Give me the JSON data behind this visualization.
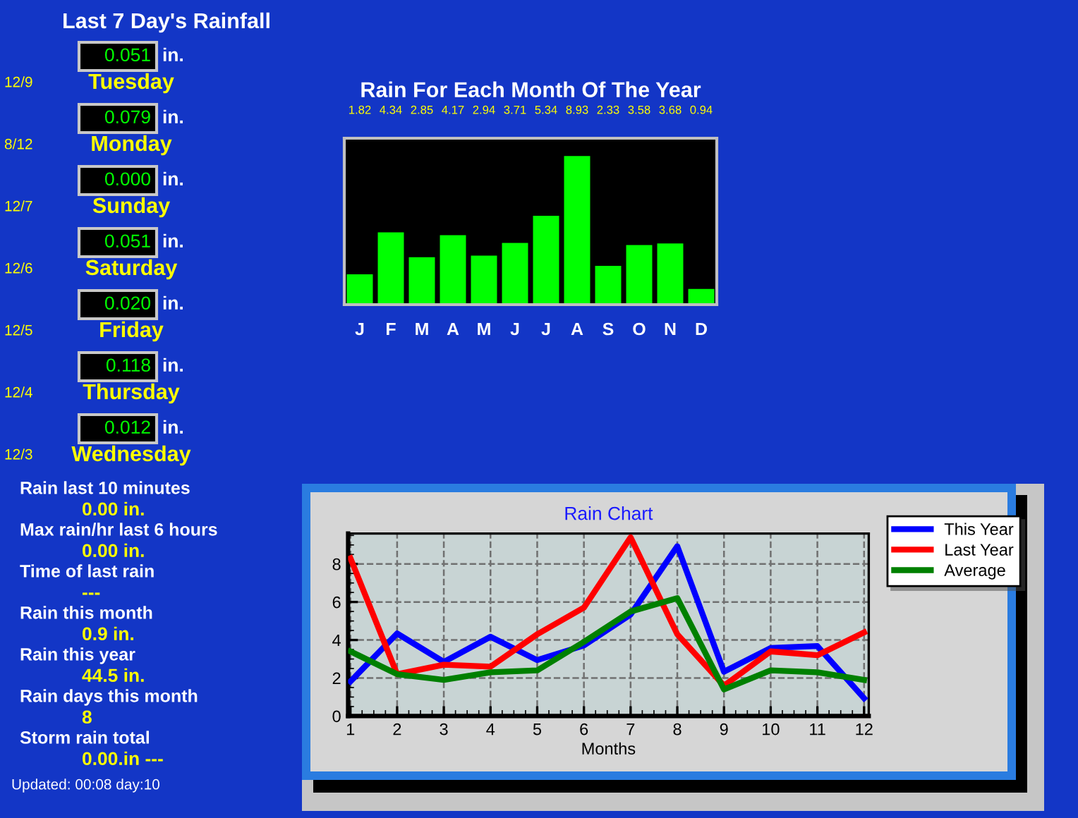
{
  "chart_data": [
    {
      "type": "other",
      "title": "Last 7 Day's Rainfall",
      "annotations": [
        "0.051",
        "in.",
        "12/9",
        "Tuesday",
        "0.079",
        "in.",
        "8/12",
        "Monday",
        "0.000",
        "in.",
        "12/7",
        "Sunday",
        "0.051",
        "in.",
        "12/6",
        "Saturday",
        "0.020",
        "in.",
        "12/5",
        "Friday",
        "0.118",
        "in.",
        "12/4",
        "Thursday",
        "0.012",
        "in.",
        "12/3",
        "Wednesday"
      ]
    },
    {
      "type": "other",
      "annotations": [
        "Rain last 10 minutes",
        "0.00 in.",
        "Max rain/hr last 6 hours",
        "0.00 in.",
        "Time of last rain",
        "---",
        "Rain this month",
        "0.9 in.",
        "Rain this year",
        "44.5 in.",
        "Rain days this month",
        "8",
        "Storm rain total",
        "0.00.in ---"
      ]
    },
    {
      "type": "other",
      "annotations": [
        "Updated: 00:08 day:10"
      ]
    },
    {
      "type": "bar",
      "title": "Rain For Each Month Of The Year",
      "categories": [
        "J",
        "F",
        "M",
        "A",
        "M",
        "J",
        "J",
        "A",
        "S",
        "O",
        "N",
        "D"
      ],
      "values": [
        1.82,
        4.34,
        2.85,
        4.17,
        2.94,
        3.71,
        5.34,
        8.93,
        2.33,
        3.58,
        3.68,
        0.94
      ],
      "color": "#00ff00",
      "data_labels": true,
      "ylim": [
        0,
        10
      ],
      "tick_labels": "x"
    },
    {
      "type": "line",
      "title": "Rain Chart",
      "xlabel": "Months",
      "x": [
        1,
        2,
        3,
        4,
        5,
        6,
        7,
        8,
        9,
        10,
        11,
        12
      ],
      "series": [
        {
          "name": "This Year",
          "color": "#0000ff",
          "values": [
            1.82,
            4.34,
            2.85,
            4.17,
            2.94,
            3.71,
            5.34,
            8.93,
            2.33,
            3.58,
            3.68,
            0.94
          ]
        },
        {
          "name": "Last Year",
          "color": "#ff0000",
          "values": [
            8.3,
            2.2,
            2.7,
            2.6,
            4.3,
            5.7,
            9.4,
            4.3,
            1.6,
            3.4,
            3.2,
            4.4
          ]
        },
        {
          "name": "Average",
          "color": "#008000",
          "values": [
            3.4,
            2.2,
            1.9,
            2.3,
            2.4,
            3.9,
            5.5,
            6.2,
            1.4,
            2.4,
            2.3,
            1.9
          ]
        }
      ],
      "xlim": [
        0.95,
        12.1
      ],
      "xticks": [
        1,
        2,
        3,
        4,
        5,
        6,
        7,
        8,
        9,
        10,
        11,
        12
      ],
      "ylim": [
        0,
        9.6
      ],
      "yticks": [
        0,
        2,
        4,
        6,
        8
      ],
      "grid": true,
      "legend": "top right",
      "line_style": "solid"
    }
  ]
}
